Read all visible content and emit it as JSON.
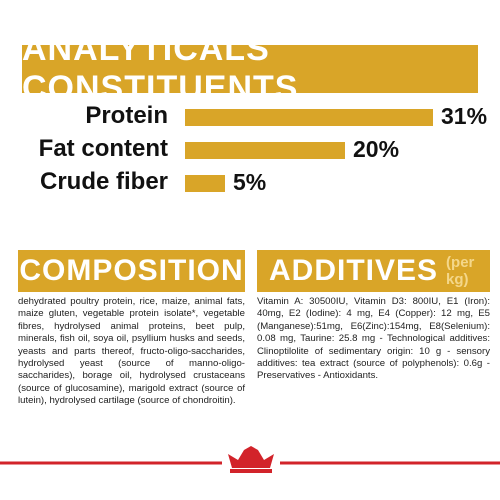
{
  "chart_data": {
    "type": "bar",
    "title": "ANALYTICALS CONSTITUENTS",
    "categories": [
      "Protein",
      "Fat content",
      "Crude fiber"
    ],
    "values": [
      31,
      20,
      5
    ],
    "value_labels": [
      "31%",
      "20%",
      "5%"
    ],
    "color": "#d9a528"
  },
  "composition": {
    "title": "COMPOSITION",
    "text": "dehydrated poultry protein, rice, maize, animal fats, maize gluten, vegetable protein isolate*, vegetable fibres, hydrolysed animal proteins, beet pulp, minerals, fish oil, soya oil, psyllium husks and seeds, yeasts and parts thereof, fructo-oligo-saccharides, hydrolysed yeast (source of manno-oligo-saccharides), borage oil, hydrolysed crustaceans (source of glucosamine), marigold extract (source of lutein), hydrolysed cartilage (source of chondroitin)."
  },
  "additives": {
    "title": "ADDITIVES",
    "subtitle": "(per kg)",
    "text": "Vitamin A: 30500IU, Vitamin D3: 800IU, E1 (Iron): 40mg, E2 (Iodine): 4 mg, E4 (Copper): 12 mg, E5 (Manganese):51mg, E6(Zinc):154mg, E8(Selenium): 0.08 mg, Taurine: 25.8 mg - Technological additives: Clinoptilolite of sedimentary origin: 10 g - sensory additives: tea extract (source of polyphenols): 0.6g - Preservatives - Antioxidants."
  }
}
